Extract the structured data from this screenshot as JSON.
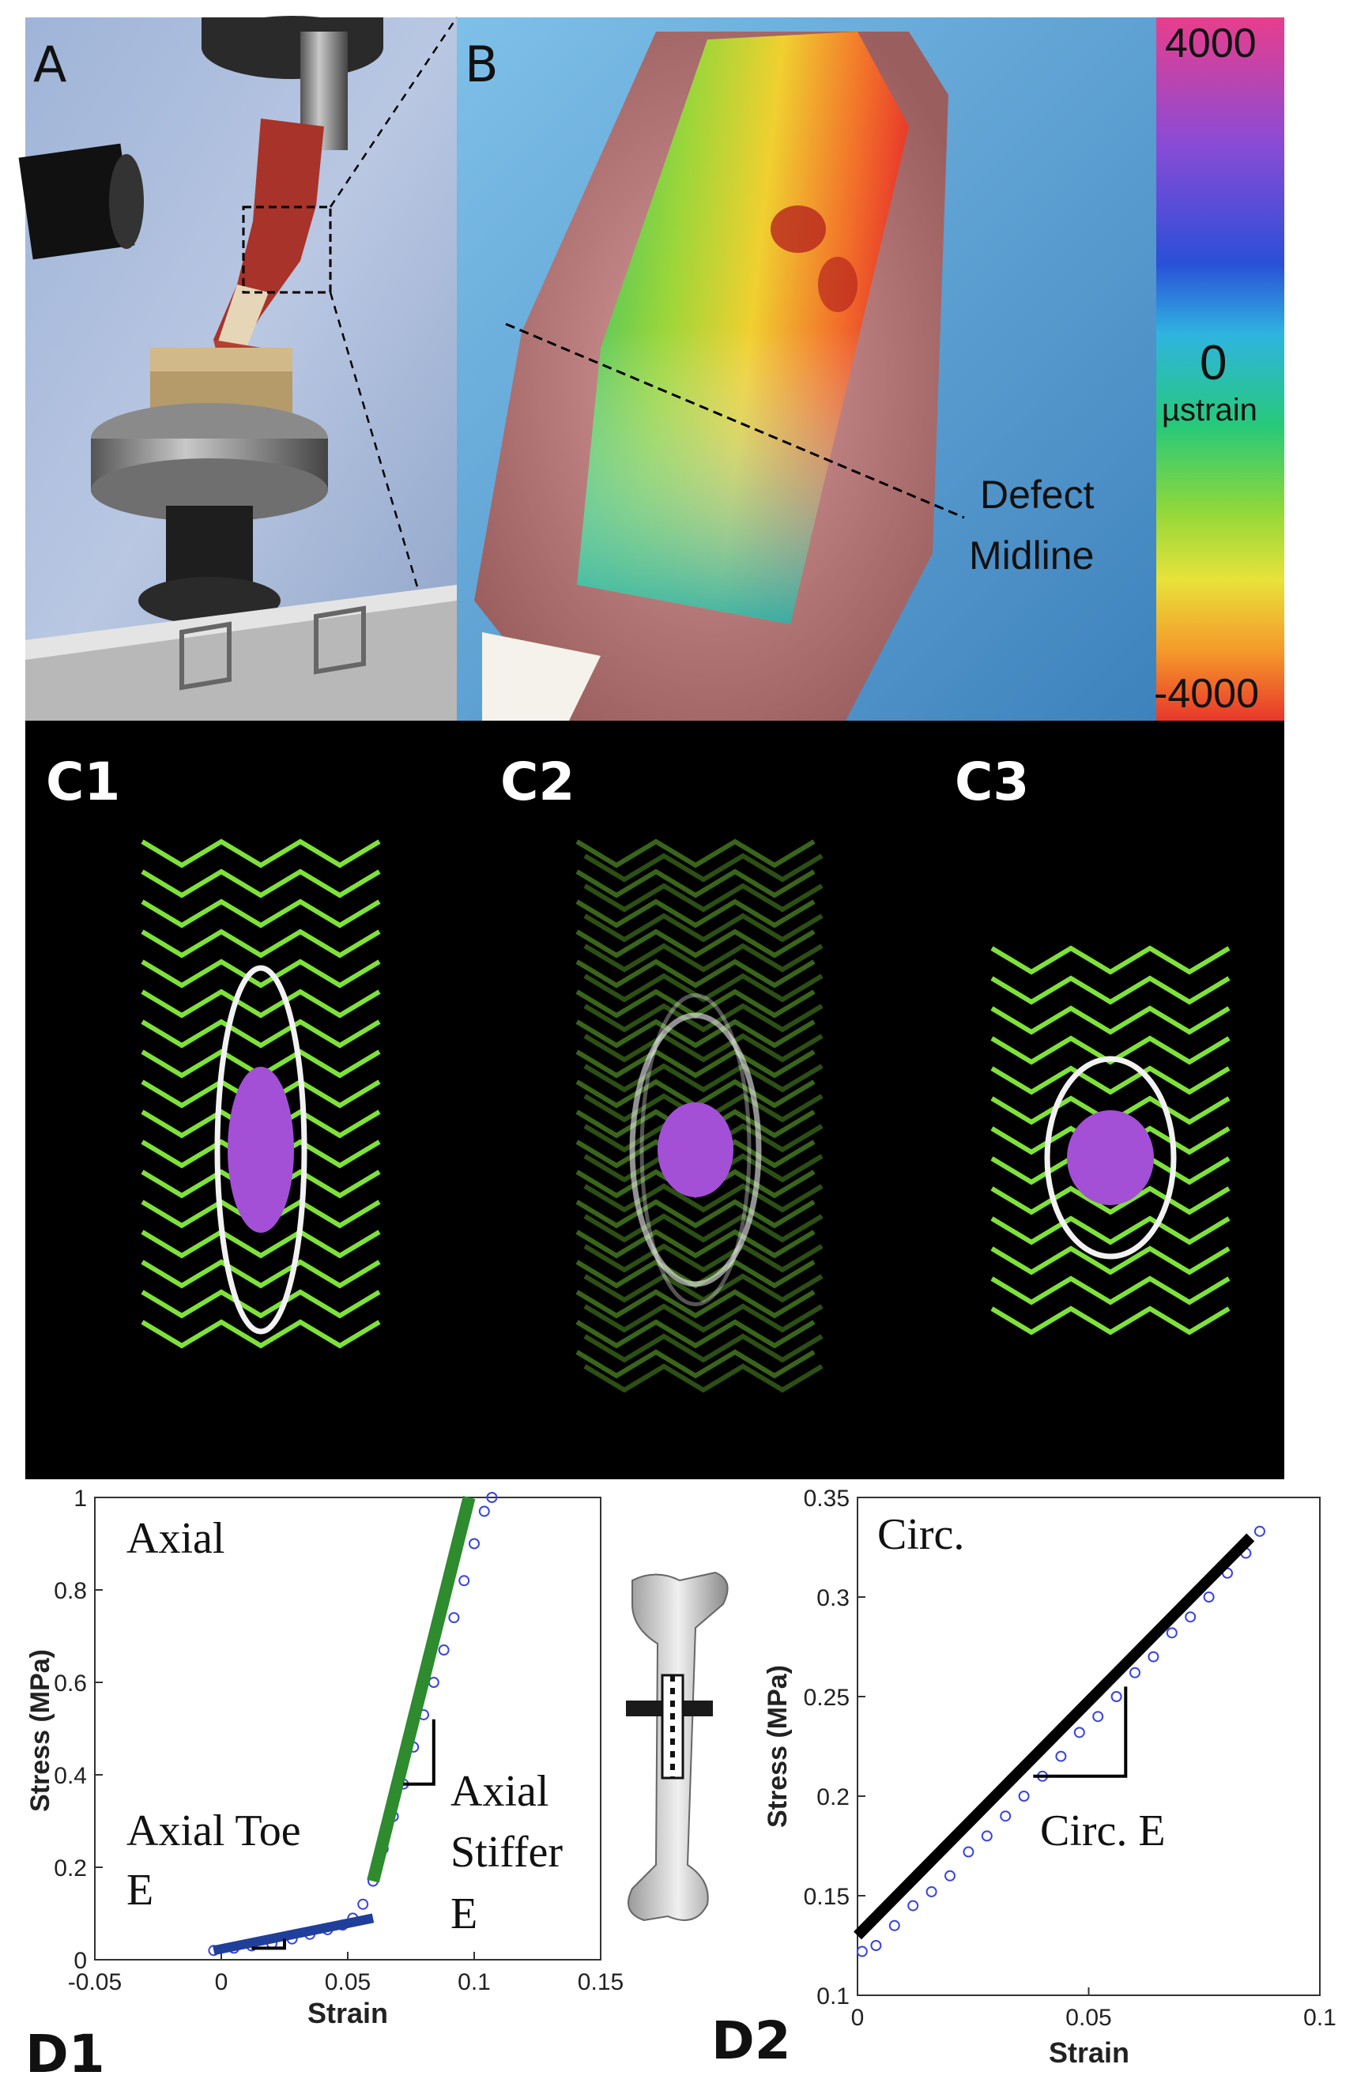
{
  "panels": {
    "A": {
      "label": "A"
    },
    "B": {
      "label": "B",
      "colorbar": {
        "top_label": "4000",
        "mid_label": "0",
        "unit_label": "µstrain",
        "bottom_label": "-4000",
        "colors": [
          "#e83e8c",
          "#8a4bd6",
          "#2a4fd8",
          "#2fb4e0",
          "#27c97a",
          "#8fd83a",
          "#e8e23a",
          "#f59a2a",
          "#e8372a"
        ]
      },
      "annotation_line1": "Defect",
      "annotation_line2": "Midline"
    },
    "C1": {
      "label": "C1"
    },
    "C2": {
      "label": "C2"
    },
    "C3": {
      "label": "C3"
    },
    "D1": {
      "label": "D1",
      "inner_title": "Axial",
      "toe_label_line1": "Axial Toe",
      "toe_label_line2": "E",
      "stiff_label_line1": "Axial",
      "stiff_label_line2": "Stiffer",
      "stiff_label_line3": "E"
    },
    "D2": {
      "label": "D2",
      "inner_title": "Circ.",
      "slope_label": "Circ. E"
    }
  },
  "colors": {
    "spring_green": "#7ee23a",
    "ellipse_white": "#f2f2f2",
    "defect_purple": "#a34fd6",
    "toe_fit": "#1f3f9a",
    "stiff_fit": "#2e8b2e",
    "data_points": "#3a44e0",
    "circ_fit": "#000000"
  },
  "chart_data": [
    {
      "type": "scatter",
      "title": "Axial",
      "xlabel": "Strain",
      "ylabel": "Stress (MPa)",
      "xlim": [
        -0.05,
        0.15
      ],
      "ylim": [
        0,
        1
      ],
      "xticks": [
        "-0.05",
        "0",
        "0.05",
        "0.1",
        "0.15"
      ],
      "yticks": [
        "0",
        "0.2",
        "0.4",
        "0.6",
        "0.8",
        "1"
      ],
      "series": [
        {
          "name": "",
          "points": [
            [
              -0.003,
              0.02
            ],
            [
              0.005,
              0.025
            ],
            [
              0.012,
              0.03
            ],
            [
              0.02,
              0.035
            ],
            [
              0.028,
              0.045
            ],
            [
              0.035,
              0.055
            ],
            [
              0.042,
              0.065
            ],
            [
              0.048,
              0.075
            ],
            [
              0.052,
              0.09
            ],
            [
              0.056,
              0.12
            ],
            [
              0.06,
              0.17
            ],
            [
              0.064,
              0.24
            ],
            [
              0.068,
              0.31
            ],
            [
              0.072,
              0.38
            ],
            [
              0.076,
              0.46
            ],
            [
              0.08,
              0.53
            ],
            [
              0.084,
              0.6
            ],
            [
              0.088,
              0.67
            ],
            [
              0.092,
              0.74
            ],
            [
              0.096,
              0.82
            ],
            [
              0.1,
              0.9
            ],
            [
              0.104,
              0.97
            ],
            [
              0.107,
              1.0
            ]
          ]
        }
      ],
      "fits": [
        {
          "name": "",
          "x": [
            -0.003,
            0.06
          ],
          "y": [
            0.02,
            0.09
          ]
        },
        {
          "name": "",
          "x": [
            0.06,
            0.098
          ],
          "y": [
            0.17,
            1.0
          ]
        }
      ],
      "grid": false
    },
    {
      "type": "scatter",
      "title": "Circ.",
      "xlabel": "Strain",
      "ylabel": "Stress (MPa)",
      "xlim": [
        0,
        0.1
      ],
      "ylim": [
        0.1,
        0.35
      ],
      "xticks": [
        "0",
        "0.05",
        "0.1"
      ],
      "yticks": [
        "0.1",
        "0.15",
        "0.2",
        "0.25",
        "0.3",
        "0.35"
      ],
      "series": [
        {
          "name": "",
          "points": [
            [
              0.001,
              0.122
            ],
            [
              0.004,
              0.125
            ],
            [
              0.008,
              0.135
            ],
            [
              0.012,
              0.145
            ],
            [
              0.016,
              0.152
            ],
            [
              0.02,
              0.16
            ],
            [
              0.024,
              0.172
            ],
            [
              0.028,
              0.18
            ],
            [
              0.032,
              0.19
            ],
            [
              0.036,
              0.2
            ],
            [
              0.04,
              0.21
            ],
            [
              0.044,
              0.22
            ],
            [
              0.048,
              0.232
            ],
            [
              0.052,
              0.24
            ],
            [
              0.056,
              0.25
            ],
            [
              0.06,
              0.262
            ],
            [
              0.064,
              0.27
            ],
            [
              0.068,
              0.282
            ],
            [
              0.072,
              0.29
            ],
            [
              0.076,
              0.3
            ],
            [
              0.08,
              0.312
            ],
            [
              0.084,
              0.322
            ],
            [
              0.087,
              0.333
            ]
          ]
        }
      ],
      "fits": [
        {
          "name": "",
          "x": [
            0.0,
            0.085
          ],
          "y": [
            0.13,
            0.33
          ]
        }
      ],
      "grid": false
    }
  ]
}
